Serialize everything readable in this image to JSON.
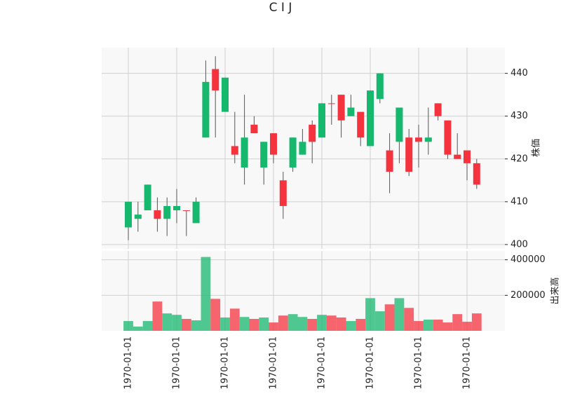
{
  "chart_data": {
    "type": "candlestick",
    "title": "C I J",
    "ylabel": "株価",
    "y2label": "出来高",
    "categories": [
      "1970-01-01",
      null,
      null,
      null,
      null,
      "1970-01-01",
      null,
      null,
      null,
      null,
      "1970-01-01",
      null,
      null,
      null,
      null,
      "1970-01-01",
      null,
      null,
      null,
      null,
      "1970-01-01",
      null,
      null,
      null,
      null,
      "1970-01-01",
      null,
      null,
      null,
      null,
      "1970-01-01",
      null,
      null,
      null,
      null,
      "1970-01-01",
      null
    ],
    "open": [
      404,
      406,
      408,
      408,
      406,
      408,
      408,
      405,
      425,
      441,
      431,
      423,
      418,
      428,
      418,
      426,
      415,
      418,
      421,
      428,
      425,
      433,
      435,
      430,
      431,
      423,
      434,
      422,
      424,
      425,
      425,
      424,
      433,
      429,
      421,
      422,
      419
    ],
    "high": [
      410,
      410,
      414,
      411,
      411,
      413,
      408,
      411,
      443,
      444,
      439,
      431,
      435,
      430,
      424,
      426,
      417,
      425,
      427,
      429,
      433,
      435,
      435,
      435,
      431,
      436,
      440,
      426,
      432,
      427,
      428,
      432,
      433,
      429,
      426,
      422,
      420
    ],
    "low": [
      401,
      403,
      408,
      403,
      402,
      405,
      402,
      405,
      425,
      425,
      431,
      419,
      414,
      426,
      414,
      419,
      406,
      417,
      421,
      419,
      425,
      428,
      425,
      430,
      423,
      423,
      433,
      412,
      419,
      416,
      418,
      421,
      429,
      420,
      420,
      415,
      413
    ],
    "close": [
      410,
      407,
      414,
      406,
      409,
      409,
      408,
      410,
      438,
      436,
      439,
      421,
      425,
      426,
      424,
      421,
      409,
      425,
      424,
      424,
      433,
      433,
      429,
      432,
      425,
      436,
      440,
      417,
      432,
      417,
      424,
      425,
      430,
      421,
      420,
      419,
      414
    ],
    "volume": [
      55000,
      24000,
      55000,
      165000,
      98000,
      90000,
      67000,
      59000,
      416000,
      180000,
      75000,
      125000,
      78000,
      67000,
      75000,
      47000,
      86000,
      94000,
      78000,
      67000,
      90000,
      86000,
      75000,
      55000,
      67000,
      184000,
      110000,
      149000,
      184000,
      129000,
      55000,
      63000,
      63000,
      47000,
      94000,
      51000,
      98000
    ],
    "up_color": "#16b86e",
    "down_color": "#f5333f",
    "ylim": [
      399,
      446
    ],
    "yticks": [
      400,
      410,
      420,
      430,
      440
    ],
    "y2lim": [
      0,
      450000
    ],
    "y2ticks": [
      200000,
      400000
    ],
    "grid": true
  }
}
